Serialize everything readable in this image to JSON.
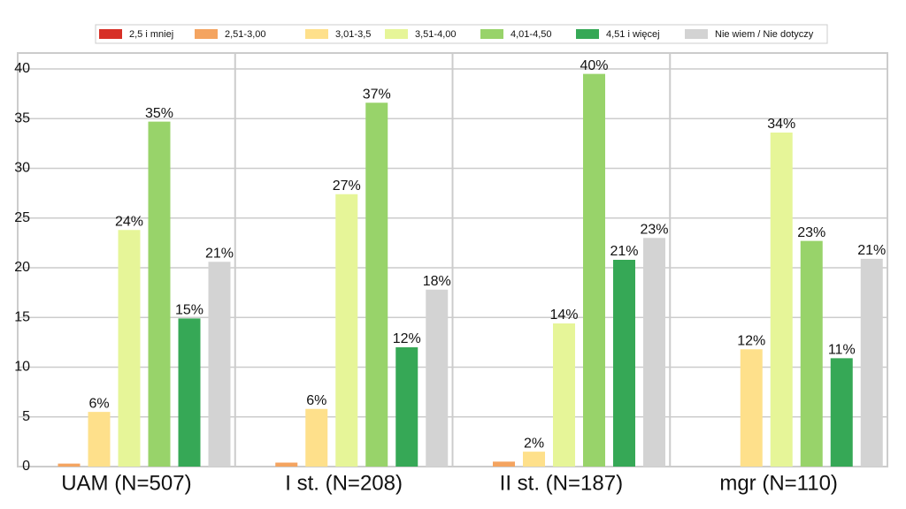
{
  "chart_data": {
    "type": "bar",
    "categories": [
      "UAM (N=507)",
      "I st. (N=208)",
      "II st. (N=187)",
      "mgr (N=110)"
    ],
    "series": [
      {
        "name": "2,5 i mniej",
        "color": "#d73027",
        "values": [
          0,
          0,
          0,
          0
        ],
        "value_labels": [
          null,
          null,
          null,
          null
        ]
      },
      {
        "name": "2,51-3,00",
        "color": "#f4a460",
        "values": [
          0.3,
          0.4,
          0.5,
          0
        ],
        "value_labels": [
          null,
          null,
          null,
          null
        ]
      },
      {
        "name": "3,01-3,5",
        "color": "#fee08b",
        "values": [
          5.5,
          5.8,
          1.5,
          11.8
        ],
        "value_labels": [
          "6%",
          "6%",
          "2%",
          "12%"
        ]
      },
      {
        "name": "3,51-4,00",
        "color": "#e6f598",
        "values": [
          23.8,
          27.4,
          14.4,
          33.6
        ],
        "value_labels": [
          "24%",
          "27%",
          "14%",
          "34%"
        ]
      },
      {
        "name": "4,01-4,50",
        "color": "#98d36a",
        "values": [
          34.7,
          36.6,
          39.5,
          22.7
        ],
        "value_labels": [
          "35%",
          "37%",
          "40%",
          "23%"
        ]
      },
      {
        "name": "4,51 i więcej",
        "color": "#36a856",
        "values": [
          14.9,
          12.0,
          20.8,
          10.9
        ],
        "value_labels": [
          "15%",
          "12%",
          "21%",
          "11%"
        ]
      },
      {
        "name": "Nie wiem / Nie dotyczy",
        "color": "#d3d3d3",
        "values": [
          20.6,
          17.8,
          23.0,
          20.9
        ],
        "value_labels": [
          "21%",
          "18%",
          "23%",
          "21%"
        ]
      }
    ],
    "ylim": [
      0,
      41.6
    ],
    "yticks": [
      0,
      5,
      10,
      15,
      20,
      25,
      30,
      35,
      40
    ],
    "grid": true
  }
}
